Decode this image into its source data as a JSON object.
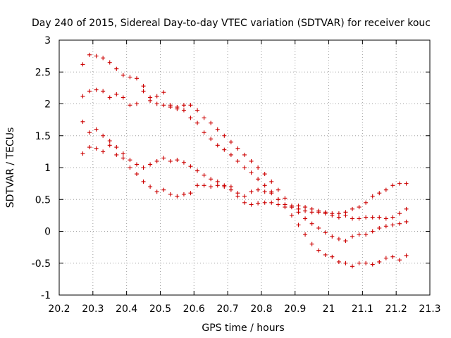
{
  "chart_data": {
    "type": "scatter",
    "title": "Day 240 of 2015, Sidereal Day-to-day VTEC variation (SDTVAR) for receiver kouc",
    "xlabel": "GPS time / hours",
    "ylabel": "SDTVAR / TECUs",
    "xlim": [
      20.2,
      21.3
    ],
    "ylim": [
      -1,
      3
    ],
    "xticks": [
      "20.2",
      "20.3",
      "20.4",
      "20.5",
      "20.6",
      "20.7",
      "20.8",
      "20.9",
      "21",
      "21.1",
      "21.2",
      "21.3"
    ],
    "yticks": [
      "-1",
      "-0.5",
      "0",
      "0.5",
      "1",
      "1.5",
      "2",
      "2.5",
      "3"
    ],
    "grid": true,
    "marker": "+",
    "color": "#cc0000",
    "series": [
      {
        "name": "series-1",
        "x": [
          20.27,
          20.29,
          20.31,
          20.33,
          20.35,
          20.37,
          20.39,
          20.41,
          20.43,
          20.45,
          20.47,
          20.49,
          20.51,
          20.53,
          20.55,
          20.57,
          20.59,
          20.61,
          20.63,
          20.65,
          20.67,
          20.69,
          20.71,
          20.73,
          20.75,
          20.77,
          20.79,
          20.81,
          20.83,
          20.85,
          20.87,
          20.89,
          20.91,
          20.93,
          20.95,
          20.97,
          20.99,
          21.01,
          21.03,
          21.05,
          21.07,
          21.09,
          21.11,
          21.13,
          21.15,
          21.17,
          21.19,
          21.21,
          21.23
        ],
        "y": [
          2.62,
          2.77,
          2.75,
          2.72,
          2.65,
          2.55,
          2.45,
          2.42,
          2.4,
          2.28,
          2.1,
          2.0,
          1.98,
          1.95,
          1.92,
          1.9,
          1.78,
          1.7,
          1.55,
          1.45,
          1.35,
          1.28,
          1.2,
          1.1,
          1.0,
          0.92,
          0.82,
          0.72,
          0.62,
          0.5,
          0.38,
          0.25,
          0.1,
          -0.05,
          -0.2,
          -0.3,
          -0.37,
          -0.4,
          -0.48,
          -0.5,
          -0.55,
          -0.5,
          -0.5,
          -0.52,
          -0.48,
          -0.42,
          -0.4,
          -0.45,
          -0.38
        ]
      },
      {
        "name": "series-2",
        "x": [
          20.27,
          20.29,
          20.31,
          20.33,
          20.35,
          20.37,
          20.39,
          20.41,
          20.43,
          20.45,
          20.47,
          20.49,
          20.51,
          20.53,
          20.55,
          20.57,
          20.59,
          20.61,
          20.63,
          20.65,
          20.67,
          20.69,
          20.71,
          20.73,
          20.75,
          20.77,
          20.79,
          20.81,
          20.83,
          20.85,
          20.87,
          20.89,
          20.91,
          20.93,
          20.95,
          20.97,
          20.99,
          21.01,
          21.03,
          21.05,
          21.07,
          21.09,
          21.11,
          21.13,
          21.15,
          21.17,
          21.19,
          21.21,
          21.23
        ],
        "y": [
          2.12,
          2.2,
          2.22,
          2.2,
          2.1,
          2.15,
          2.1,
          1.98,
          2.0,
          2.2,
          2.05,
          2.12,
          2.18,
          1.98,
          1.95,
          1.98,
          1.98,
          1.9,
          1.78,
          1.7,
          1.6,
          1.5,
          1.4,
          1.3,
          1.2,
          1.1,
          1.0,
          0.9,
          0.78,
          0.65,
          0.52,
          0.4,
          0.3,
          0.2,
          0.12,
          0.05,
          -0.02,
          -0.08,
          -0.12,
          -0.15,
          -0.08,
          -0.05,
          -0.05,
          0.0,
          0.05,
          0.08,
          0.1,
          0.12,
          0.15
        ]
      },
      {
        "name": "series-3",
        "x": [
          20.27,
          20.29,
          20.31,
          20.33,
          20.35,
          20.37,
          20.39,
          20.41,
          20.43,
          20.45,
          20.47,
          20.49,
          20.51,
          20.53,
          20.55,
          20.57,
          20.59,
          20.61,
          20.63,
          20.65,
          20.67,
          20.69,
          20.71,
          20.73,
          20.75,
          20.77,
          20.79,
          20.81,
          20.83,
          20.85,
          20.87,
          20.89,
          20.91,
          20.93,
          20.95,
          20.97,
          20.99,
          21.01,
          21.03,
          21.05,
          21.07,
          21.09,
          21.11,
          21.13,
          21.15,
          21.17,
          21.19,
          21.21,
          21.23
        ],
        "y": [
          1.72,
          1.55,
          1.6,
          1.5,
          1.42,
          1.32,
          1.22,
          1.12,
          1.05,
          1.0,
          1.05,
          1.1,
          1.15,
          1.1,
          1.12,
          1.08,
          1.02,
          0.95,
          0.88,
          0.82,
          0.78,
          0.72,
          0.7,
          0.6,
          0.55,
          0.62,
          0.65,
          0.62,
          0.6,
          0.5,
          0.42,
          0.38,
          0.35,
          0.32,
          0.3,
          0.3,
          0.28,
          0.25,
          0.22,
          0.3,
          0.35,
          0.38,
          0.45,
          0.55,
          0.6,
          0.65,
          0.72,
          0.75,
          0.75
        ]
      },
      {
        "name": "series-4",
        "x": [
          20.27,
          20.29,
          20.31,
          20.33,
          20.35,
          20.37,
          20.39,
          20.41,
          20.43,
          20.45,
          20.47,
          20.49,
          20.51,
          20.53,
          20.55,
          20.57,
          20.59,
          20.61,
          20.63,
          20.65,
          20.67,
          20.69,
          20.71,
          20.73,
          20.75,
          20.77,
          20.79,
          20.81,
          20.83,
          20.85,
          20.87,
          20.89,
          20.91,
          20.93,
          20.95,
          20.97,
          20.99,
          21.01,
          21.03,
          21.05,
          21.07,
          21.09,
          21.11,
          21.13,
          21.15,
          21.17,
          21.19,
          21.21,
          21.23
        ],
        "y": [
          1.22,
          1.32,
          1.3,
          1.25,
          1.35,
          1.2,
          1.15,
          1.0,
          0.9,
          0.78,
          0.7,
          0.62,
          0.65,
          0.58,
          0.55,
          0.58,
          0.6,
          0.72,
          0.72,
          0.7,
          0.72,
          0.7,
          0.65,
          0.55,
          0.45,
          0.42,
          0.44,
          0.45,
          0.45,
          0.42,
          0.42,
          0.38,
          0.4,
          0.38,
          0.35,
          0.32,
          0.3,
          0.28,
          0.28,
          0.25,
          0.2,
          0.2,
          0.22,
          0.22,
          0.22,
          0.2,
          0.22,
          0.28,
          0.35
        ]
      }
    ]
  }
}
